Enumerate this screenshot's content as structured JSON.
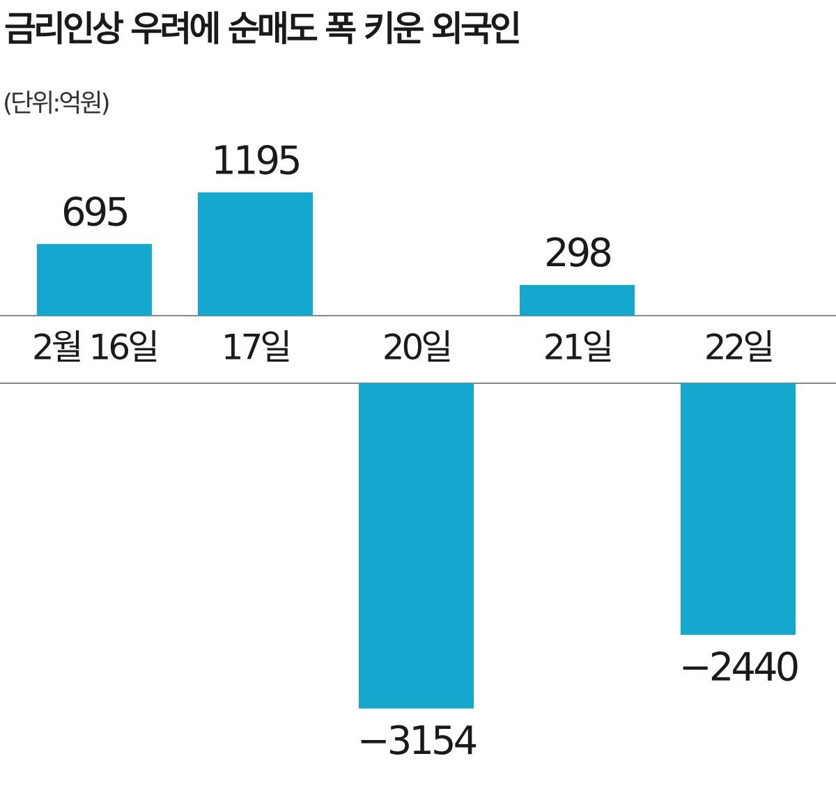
{
  "chart_data": {
    "type": "bar",
    "title": "금리인상 우려에 순매도 폭 키운 외국인",
    "subtitle": "(단위:억원)",
    "categories": [
      "2월 16일",
      "17일",
      "20일",
      "21일",
      "22일"
    ],
    "values": [
      695,
      1195,
      -3154,
      298,
      -2440
    ],
    "value_labels": [
      "695",
      "1195",
      "−3154",
      "298",
      "−2440"
    ],
    "color": "#14a8cf"
  }
}
